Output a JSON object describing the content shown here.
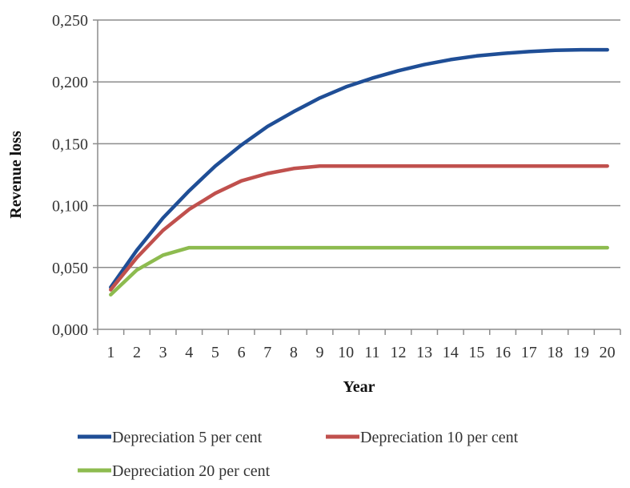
{
  "chart_data": {
    "type": "line",
    "title": "",
    "xlabel": "Year",
    "ylabel": "Revenue loss",
    "x": [
      1,
      2,
      3,
      4,
      5,
      6,
      7,
      8,
      9,
      10,
      11,
      12,
      13,
      14,
      15,
      16,
      17,
      18,
      19,
      20
    ],
    "ylim": [
      0,
      0.25
    ],
    "y_ticks": [
      "0,000",
      "0,050",
      "0,100",
      "0,150",
      "0,200",
      "0,250"
    ],
    "y_tick_values": [
      0,
      0.05,
      0.1,
      0.15,
      0.2,
      0.25
    ],
    "grid": true,
    "legend_position": "bottom",
    "series": [
      {
        "name": "Depreciation 5 per cent",
        "color": "#1F4E96",
        "values": [
          0.034,
          0.064,
          0.09,
          0.112,
          0.132,
          0.149,
          0.164,
          0.176,
          0.187,
          0.196,
          0.203,
          0.209,
          0.214,
          0.218,
          0.221,
          0.223,
          0.2245,
          0.2255,
          0.226,
          0.226
        ]
      },
      {
        "name": "Depreciation 10 per cent",
        "color": "#C0504D",
        "values": [
          0.032,
          0.058,
          0.08,
          0.097,
          0.11,
          0.12,
          0.126,
          0.13,
          0.132,
          0.132,
          0.132,
          0.132,
          0.132,
          0.132,
          0.132,
          0.132,
          0.132,
          0.132,
          0.132,
          0.132
        ]
      },
      {
        "name": "Depreciation 20 per cent",
        "color": "#8DBB4F",
        "values": [
          0.028,
          0.048,
          0.06,
          0.066,
          0.066,
          0.066,
          0.066,
          0.066,
          0.066,
          0.066,
          0.066,
          0.066,
          0.066,
          0.066,
          0.066,
          0.066,
          0.066,
          0.066,
          0.066,
          0.066
        ]
      }
    ]
  }
}
